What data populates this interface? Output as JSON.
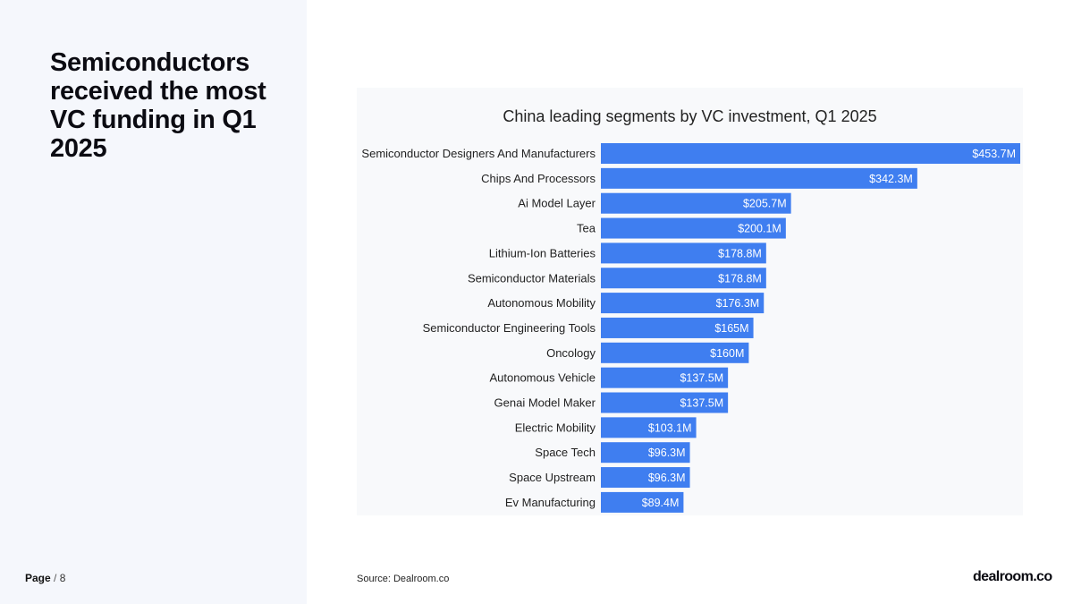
{
  "headline": "Semiconductors received the most VC funding in Q1 2025",
  "footer": {
    "page_label": "Page",
    "page_separator": "/",
    "page_number": "8",
    "source": "Source:  Dealroom.co",
    "logo_text": "dealroom.co"
  },
  "chart_data": {
    "type": "bar",
    "orientation": "horizontal",
    "title": "China leading segments by VC investment, Q1 2025",
    "categories": [
      "Semiconductor Designers And Manufacturers",
      "Chips And Processors",
      "Ai Model Layer",
      "Tea",
      "Lithium-Ion Batteries",
      "Semiconductor Materials",
      "Autonomous Mobility",
      "Semiconductor Engineering Tools",
      "Oncology",
      "Autonomous Vehicle",
      "Genai Model Maker",
      "Electric Mobility",
      "Space Tech",
      "Space Upstream",
      "Ev Manufacturing"
    ],
    "values": [
      453.7,
      342.3,
      205.7,
      200.1,
      178.8,
      178.8,
      176.3,
      165,
      160,
      137.5,
      137.5,
      103.1,
      96.3,
      96.3,
      89.4
    ],
    "labels": [
      "$453.7M",
      "$342.3M",
      "$205.7M",
      "$200.1M",
      "$178.8M",
      "$178.8M",
      "$176.3M",
      "$165M",
      "$160M",
      "$137.5M",
      "$137.5M",
      "$103.1M",
      "$96.3M",
      "$96.3M",
      "$89.4M"
    ],
    "unit": "$M",
    "xlim": [
      0,
      453.7
    ],
    "bar_color": "#3f7ef0",
    "grid": false,
    "legend": "none"
  }
}
